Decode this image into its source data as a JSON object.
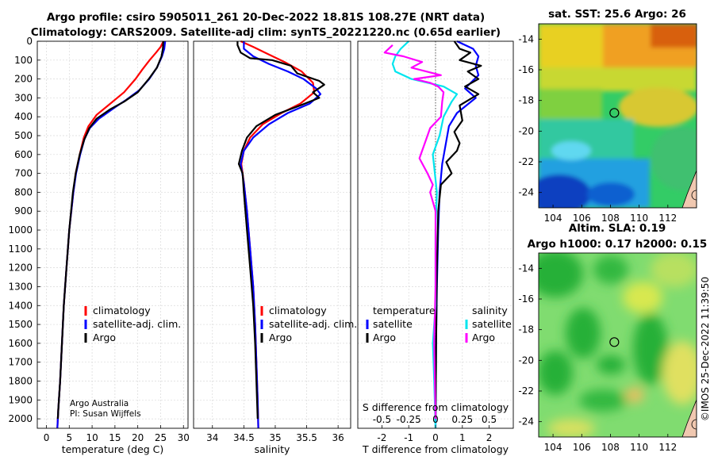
{
  "title": {
    "line1": "Argo profile: csiro 5905011_261 20-Dec-2022 18.81S 108.27E (NRT data)",
    "line2": "Climatology: CARS2009. Satellite-adj clim: synTS_20221220.nc (0.65d earlier)"
  },
  "colors": {
    "climatology": "#ff0000",
    "satellite": "#0000ff",
    "argo": "#000000",
    "sat_salinity": "#00e5ee",
    "argo_salinity": "#ff00ff"
  },
  "credits": {
    "line1": "Argo Australia",
    "line2": "PI: Susan Wijffels"
  },
  "timestamp": "©IMOS 25-Dec-2022 11:39:50",
  "chart_data": [
    {
      "id": "temperature",
      "type": "line",
      "xlabel": "temperature (deg C)",
      "xlim": [
        -2,
        31
      ],
      "ylim": [
        0,
        2050
      ],
      "yreversed": true,
      "xticks": [
        0,
        5,
        10,
        15,
        20,
        25,
        30
      ],
      "yticks": [
        0,
        100,
        200,
        300,
        400,
        500,
        600,
        700,
        800,
        900,
        1000,
        1100,
        1200,
        1300,
        1400,
        1500,
        1600,
        1700,
        1800,
        1900,
        2000
      ],
      "series": [
        {
          "name": "climatology",
          "color": "#ff0000",
          "points": [
            [
              25.6,
              0
            ],
            [
              25,
              30
            ],
            [
              24,
              60
            ],
            [
              22.6,
              100
            ],
            [
              21,
              150
            ],
            [
              19.5,
              200
            ],
            [
              17,
              270
            ],
            [
              14,
              330
            ],
            [
              11,
              390
            ],
            [
              9.2,
              450
            ],
            [
              8.2,
              510
            ],
            [
              7.3,
              600
            ],
            [
              6.4,
              700
            ],
            [
              5.9,
              800
            ],
            [
              5,
              1000
            ],
            [
              4.4,
              1200
            ],
            [
              3.8,
              1400
            ],
            [
              3.4,
              1600
            ],
            [
              3,
              1800
            ],
            [
              2.6,
              1950
            ],
            [
              2.4,
              2050
            ]
          ]
        },
        {
          "name": "satellite-adj. clim.",
          "color": "#0000ff",
          "points": [
            [
              26,
              0
            ],
            [
              25.8,
              40
            ],
            [
              25.3,
              80
            ],
            [
              24.2,
              140
            ],
            [
              22.5,
              200
            ],
            [
              20.3,
              260
            ],
            [
              17.5,
              310
            ],
            [
              15,
              350
            ],
            [
              11.5,
              410
            ],
            [
              9.5,
              460
            ],
            [
              8.3,
              520
            ],
            [
              7.4,
              600
            ],
            [
              6.5,
              700
            ],
            [
              5.9,
              800
            ],
            [
              5,
              1000
            ],
            [
              4.4,
              1200
            ],
            [
              3.8,
              1400
            ],
            [
              3.4,
              1600
            ],
            [
              3,
              1800
            ],
            [
              2.6,
              1950
            ],
            [
              2.4,
              2050
            ]
          ]
        },
        {
          "name": "Argo",
          "color": "#000000",
          "points": [
            [
              25.6,
              0
            ],
            [
              25.5,
              40
            ],
            [
              25.2,
              80
            ],
            [
              24.2,
              140
            ],
            [
              22.4,
              200
            ],
            [
              20,
              270
            ],
            [
              17,
              320
            ],
            [
              14,
              360
            ],
            [
              11,
              410
            ],
            [
              9.4,
              460
            ],
            [
              8.3,
              520
            ],
            [
              7.3,
              600
            ],
            [
              6.4,
              700
            ],
            [
              5.8,
              800
            ],
            [
              5,
              1000
            ],
            [
              4.4,
              1200
            ],
            [
              3.8,
              1400
            ],
            [
              3.4,
              1600
            ],
            [
              3,
              1800
            ],
            [
              2.6,
              1950
            ],
            [
              2.5,
              2000
            ]
          ]
        }
      ],
      "legend": [
        "climatology",
        "satellite-adj. clim.",
        "Argo"
      ]
    },
    {
      "id": "salinity",
      "type": "line",
      "xlabel": "salinity",
      "xlim": [
        33.7,
        36.2
      ],
      "ylim": [
        0,
        2050
      ],
      "yreversed": true,
      "xticks": [
        34,
        34.5,
        35,
        35.5,
        36
      ],
      "series": [
        {
          "name": "climatology",
          "color": "#ff0000",
          "points": [
            [
              34.45,
              0
            ],
            [
              34.65,
              30
            ],
            [
              34.9,
              70
            ],
            [
              35.15,
              110
            ],
            [
              35.42,
              160
            ],
            [
              35.6,
              220
            ],
            [
              35.62,
              270
            ],
            [
              35.4,
              330
            ],
            [
              35.1,
              380
            ],
            [
              34.8,
              440
            ],
            [
              34.6,
              510
            ],
            [
              34.5,
              580
            ],
            [
              34.46,
              650
            ],
            [
              34.5,
              750
            ],
            [
              34.55,
              900
            ],
            [
              34.6,
              1100
            ],
            [
              34.65,
              1300
            ],
            [
              34.68,
              1500
            ],
            [
              34.7,
              1700
            ],
            [
              34.72,
              1900
            ],
            [
              34.73,
              2050
            ]
          ]
        },
        {
          "name": "satellite-adj. clim.",
          "color": "#0000ff",
          "points": [
            [
              34.5,
              0
            ],
            [
              34.5,
              40
            ],
            [
              34.65,
              80
            ],
            [
              34.9,
              120
            ],
            [
              35.2,
              160
            ],
            [
              35.45,
              200
            ],
            [
              35.65,
              250
            ],
            [
              35.72,
              280
            ],
            [
              35.55,
              330
            ],
            [
              35.2,
              380
            ],
            [
              34.9,
              440
            ],
            [
              34.65,
              510
            ],
            [
              34.5,
              580
            ],
            [
              34.45,
              650
            ],
            [
              34.5,
              750
            ],
            [
              34.55,
              900
            ],
            [
              34.6,
              1100
            ],
            [
              34.65,
              1300
            ],
            [
              34.68,
              1500
            ],
            [
              34.7,
              1700
            ],
            [
              34.72,
              1900
            ],
            [
              34.73,
              2050
            ]
          ]
        },
        {
          "name": "Argo",
          "color": "#000000",
          "points": [
            [
              34.4,
              0
            ],
            [
              34.4,
              20
            ],
            [
              34.45,
              60
            ],
            [
              34.6,
              90
            ],
            [
              34.95,
              100
            ],
            [
              35.25,
              130
            ],
            [
              35.35,
              170
            ],
            [
              35.7,
              210
            ],
            [
              35.78,
              230
            ],
            [
              35.6,
              270
            ],
            [
              35.7,
              300
            ],
            [
              35.4,
              340
            ],
            [
              35.0,
              390
            ],
            [
              34.7,
              450
            ],
            [
              34.55,
              510
            ],
            [
              34.47,
              580
            ],
            [
              34.42,
              650
            ],
            [
              34.48,
              700
            ],
            [
              34.5,
              800
            ],
            [
              34.55,
              1000
            ],
            [
              34.6,
              1200
            ],
            [
              34.65,
              1400
            ],
            [
              34.68,
              1600
            ],
            [
              34.7,
              1800
            ],
            [
              34.72,
              2000
            ]
          ]
        }
      ],
      "legend": [
        "climatology",
        "satellite-adj. clim.",
        "Argo"
      ]
    },
    {
      "id": "difference",
      "type": "line",
      "xlabel": "T difference from climatology",
      "xlim": [
        -2.9,
        2.9
      ],
      "ylim": [
        0,
        2050
      ],
      "yreversed": true,
      "xticks": [
        -2,
        -1,
        0,
        1,
        2
      ],
      "top_axis_label": "S difference from climatology",
      "top_ticks": [
        "-0.5",
        "-0.25",
        "0",
        "0.25",
        "0.5"
      ],
      "series": [
        {
          "name": "temperature satellite",
          "color": "#0000ff",
          "points": [
            [
              0.8,
              0
            ],
            [
              1.4,
              40
            ],
            [
              1.6,
              80
            ],
            [
              1.5,
              130
            ],
            [
              1.6,
              180
            ],
            [
              1.1,
              250
            ],
            [
              1.5,
              300
            ],
            [
              0.8,
              380
            ],
            [
              0.5,
              450
            ],
            [
              0.4,
              530
            ],
            [
              0.25,
              650
            ],
            [
              0.15,
              800
            ],
            [
              0.1,
              1000
            ],
            [
              0.05,
              1300
            ],
            [
              0.02,
              1600
            ],
            [
              0,
              2050
            ]
          ]
        },
        {
          "name": "temperature Argo",
          "color": "#000000",
          "points": [
            [
              0.7,
              0
            ],
            [
              0.9,
              40
            ],
            [
              1.3,
              60
            ],
            [
              0.9,
              100
            ],
            [
              1.7,
              130
            ],
            [
              1.2,
              160
            ],
            [
              1.6,
              200
            ],
            [
              1.1,
              240
            ],
            [
              1.6,
              280
            ],
            [
              0.9,
              340
            ],
            [
              1.0,
              420
            ],
            [
              0.7,
              480
            ],
            [
              0.9,
              540
            ],
            [
              0.8,
              580
            ],
            [
              0.4,
              640
            ],
            [
              0.6,
              700
            ],
            [
              0.2,
              760
            ],
            [
              0.1,
              900
            ],
            [
              0.05,
              1200
            ],
            [
              0.02,
              1600
            ],
            [
              0,
              2000
            ]
          ]
        },
        {
          "name": "salinity satellite",
          "color": "#00e5ee",
          "points": [
            [
              -1.0,
              0
            ],
            [
              -1.3,
              40
            ],
            [
              -1.5,
              80
            ],
            [
              -1.6,
              120
            ],
            [
              -1.5,
              160
            ],
            [
              -0.9,
              200
            ],
            [
              0.3,
              240
            ],
            [
              0.8,
              280
            ],
            [
              0.6,
              320
            ],
            [
              0.3,
              400
            ],
            [
              0.15,
              500
            ],
            [
              -0.1,
              600
            ],
            [
              0.05,
              800
            ],
            [
              0,
              1000
            ],
            [
              0,
              1400
            ],
            [
              -0.1,
              1600
            ],
            [
              -0.05,
              1800
            ],
            [
              0,
              2050
            ]
          ]
        },
        {
          "name": "salinity Argo",
          "color": "#ff00ff",
          "points": [
            [
              -1.6,
              20
            ],
            [
              -1.9,
              60
            ],
            [
              -1.2,
              80
            ],
            [
              -0.5,
              110
            ],
            [
              -0.9,
              140
            ],
            [
              0.2,
              180
            ],
            [
              -0.8,
              200
            ],
            [
              -0.2,
              220
            ],
            [
              0.1,
              240
            ],
            [
              0.3,
              270
            ],
            [
              0.25,
              320
            ],
            [
              0.2,
              400
            ],
            [
              -0.2,
              460
            ],
            [
              -0.4,
              540
            ],
            [
              -0.6,
              620
            ],
            [
              -0.3,
              700
            ],
            [
              -0.1,
              760
            ],
            [
              -0.2,
              800
            ],
            [
              0,
              900
            ],
            [
              0,
              1300
            ],
            [
              -0.05,
              1600
            ],
            [
              0,
              2000
            ]
          ]
        }
      ],
      "legend_left": {
        "title": "temperature",
        "items": [
          "satellite",
          "Argo"
        ]
      },
      "legend_right": {
        "title": "salinity",
        "items": [
          "satellite",
          "Argo"
        ]
      }
    },
    {
      "id": "sst_map",
      "type": "heatmap",
      "title": "sat. SST: 25.6 Argo: 26",
      "xticks": [
        104,
        106,
        108,
        110,
        112
      ],
      "yticks": [
        -14,
        -16,
        -18,
        -20,
        -22,
        -24
      ],
      "xlim": [
        103,
        114
      ],
      "ylim": [
        -25,
        -13
      ],
      "marker": {
        "lon": 108.27,
        "lat": -18.81
      }
    },
    {
      "id": "sla_map",
      "type": "heatmap",
      "title_line1": "Altim. SLA: 0.19",
      "title_line2": "Argo h1000: 0.17 h2000: 0.15",
      "xticks": [
        104,
        106,
        108,
        110,
        112
      ],
      "yticks": [
        -14,
        -16,
        -18,
        -20,
        -22,
        -24
      ],
      "xlim": [
        103,
        114
      ],
      "ylim": [
        -25,
        -13
      ],
      "marker": {
        "lon": 108.27,
        "lat": -18.81
      }
    }
  ]
}
